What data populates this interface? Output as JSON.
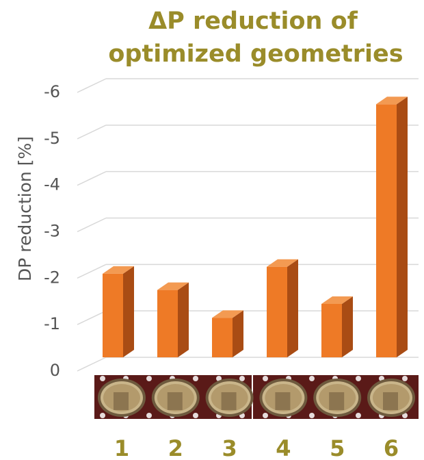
{
  "chart_data": {
    "type": "bar",
    "title_lines": [
      "ΔP reduction of",
      "optimized geometries"
    ],
    "ylabel": "DP reduction [%]",
    "xlabel": "",
    "categories": [
      "1",
      "2",
      "3",
      "4",
      "5",
      "6"
    ],
    "values": [
      -1.8,
      -1.45,
      -0.85,
      -1.95,
      -1.15,
      -5.45
    ],
    "yticks": [
      "-6",
      "-5",
      "-4",
      "-3",
      "-2",
      "-1",
      "0"
    ],
    "ylim": [
      0,
      -6
    ],
    "grid": true,
    "legend": "none",
    "style": "3d",
    "colors": {
      "bar_front": "#ee7a26",
      "bar_side": "#a94c14",
      "bar_top": "#f39a52",
      "title": "#9a8c2a",
      "tick_text": "#555555",
      "xtick_text": "#9a8c2a",
      "grid": "#d8d8d8",
      "strip_bg": "#5a1a18",
      "cell_rim": "#c9b58a"
    }
  }
}
